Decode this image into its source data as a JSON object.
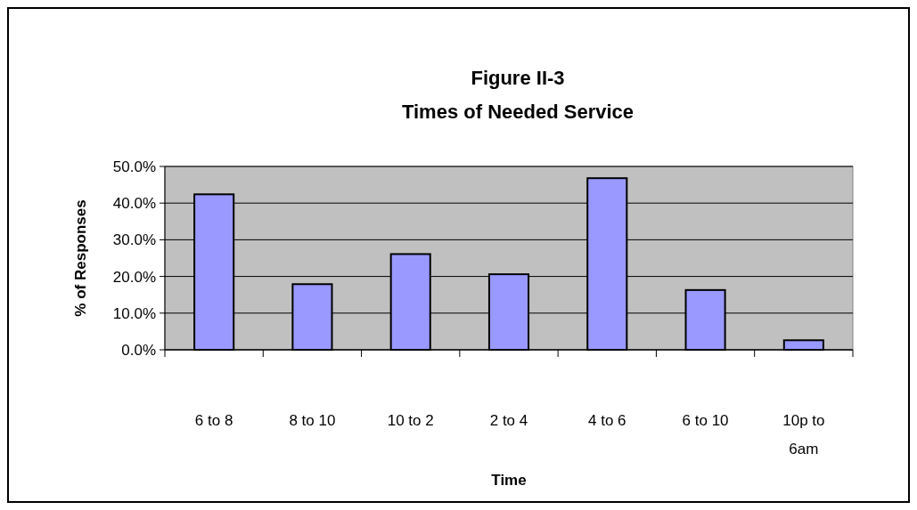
{
  "chart_data": {
    "type": "bar",
    "title": "Figure II-3",
    "subtitle": "Times of Needed Service",
    "xlabel": "Time",
    "ylabel": "% of Responses",
    "categories": [
      "6 to 8",
      "8 to 10",
      "10 to 2",
      "2 to 4",
      "4 to 6",
      "6 to 10",
      "10p to 6am"
    ],
    "values": [
      42.4,
      17.9,
      26.1,
      20.6,
      46.8,
      16.3,
      2.6
    ],
    "color": "#9999ff",
    "ylim": [
      0,
      50
    ],
    "yticks": [
      {
        "value": 0,
        "label": "0.0%"
      },
      {
        "value": 10,
        "label": "10.0%"
      },
      {
        "value": 20,
        "label": "20.0%"
      },
      {
        "value": 30,
        "label": "30.0%"
      },
      {
        "value": 40,
        "label": "40.0%"
      },
      {
        "value": 50,
        "label": "50.0%"
      }
    ],
    "grid": "y",
    "legend": false
  }
}
